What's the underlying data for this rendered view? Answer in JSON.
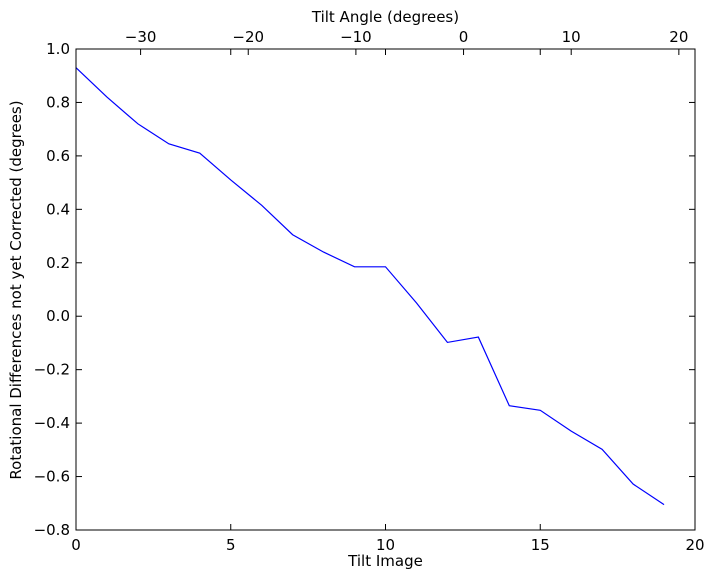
{
  "chart_data": {
    "type": "line",
    "xlabel": "Tilt Image",
    "ylabel": "Rotational Differences not yet Corrected (degrees)",
    "x2label": "Tilt Angle (degrees)",
    "xlim": [
      0,
      20
    ],
    "ylim": [
      -0.8,
      1.0
    ],
    "x2lim": [
      -36,
      21.5
    ],
    "grid": false,
    "line_color": "#0000ff",
    "x_ticks": [
      0,
      5,
      10,
      15,
      20
    ],
    "x_tick_labels": [
      "0",
      "5",
      "10",
      "15",
      "20"
    ],
    "y_ticks": [
      -0.8,
      -0.6,
      -0.4,
      -0.2,
      0.0,
      0.2,
      0.4,
      0.6,
      0.8,
      1.0
    ],
    "y_tick_labels": [
      "−0.8",
      "−0.6",
      "−0.4",
      "−0.2",
      "0.0",
      "0.2",
      "0.4",
      "0.6",
      "0.8",
      "1.0"
    ],
    "x2_ticks": [
      -30,
      -20,
      -10,
      0,
      10,
      20
    ],
    "x2_tick_labels": [
      "−30",
      "−20",
      "−10",
      "0",
      "10",
      "20"
    ],
    "series": [
      {
        "x": [
          0,
          1,
          2,
          3,
          4,
          5,
          6,
          7,
          8,
          9,
          10,
          11,
          12,
          13,
          14,
          15,
          16,
          17,
          18,
          19
        ],
        "y": [
          0.93,
          0.82,
          0.72,
          0.645,
          0.61,
          0.51,
          0.415,
          0.305,
          0.24,
          0.185,
          0.185,
          0.05,
          -0.098,
          -0.078,
          -0.335,
          -0.352,
          -0.43,
          -0.498,
          -0.628,
          -0.705
        ]
      }
    ]
  }
}
